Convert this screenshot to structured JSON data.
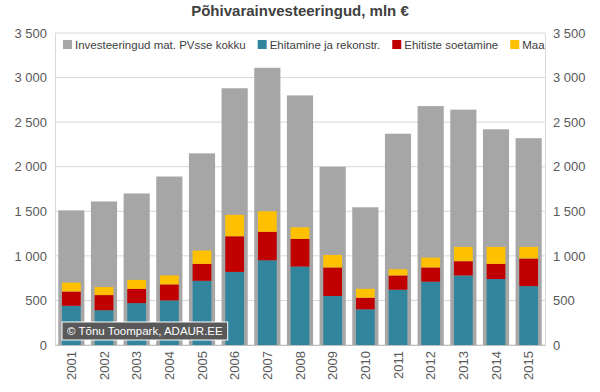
{
  "chart_data": {
    "type": "bar",
    "title": "Põhivarainvesteeringud, mln €",
    "annotation": "© Tõnu Toompark, ADAUR.EE",
    "categories": [
      "2001",
      "2002",
      "2003",
      "2004",
      "2005",
      "2006",
      "2007",
      "2008",
      "2009",
      "2010",
      "2011",
      "2012",
      "2013",
      "2014",
      "2015"
    ],
    "series": [
      {
        "name": "Investeeringud mat. PVsse kokku",
        "color": "#a6a6a6",
        "values": [
          1510,
          1610,
          1700,
          1890,
          2150,
          2880,
          3110,
          2800,
          2000,
          1545,
          2370,
          2680,
          2640,
          2420,
          2320
        ]
      },
      {
        "name": "Ehitamine ja rekonstr.",
        "color": "#31859c",
        "stacked": true,
        "values": [
          440,
          390,
          470,
          500,
          720,
          820,
          950,
          880,
          550,
          400,
          620,
          710,
          780,
          740,
          660
        ]
      },
      {
        "name": "Ehitiste soetamine",
        "color": "#c00000",
        "stacked": true,
        "values": [
          160,
          170,
          160,
          180,
          190,
          400,
          320,
          310,
          320,
          130,
          160,
          160,
          160,
          170,
          310
        ]
      },
      {
        "name": "Maa",
        "color": "#ffc000",
        "stacked": true,
        "values": [
          100,
          90,
          100,
          100,
          150,
          240,
          230,
          130,
          140,
          100,
          70,
          110,
          160,
          190,
          130
        ]
      }
    ],
    "ylim": [
      0,
      3500
    ],
    "yticks": [
      0,
      500,
      {
        "value": 1000,
        "label": "1 000"
      },
      {
        "value": 1500,
        "label": "1 500"
      },
      {
        "value": 2000,
        "label": "2 000"
      },
      {
        "value": 2500,
        "label": "2 500"
      },
      {
        "value": 3000,
        "label": "3 000"
      },
      {
        "value": 3500,
        "label": "3 500"
      }
    ],
    "y2lim": [
      0,
      3500
    ],
    "y2ticks": [
      0,
      500,
      {
        "value": 1000,
        "label": "1 000"
      },
      {
        "value": 1500,
        "label": "1 500"
      },
      {
        "value": 2000,
        "label": "2 000"
      },
      {
        "value": 2500,
        "label": "2 500"
      },
      {
        "value": 3000,
        "label": "3 000"
      },
      {
        "value": 3500,
        "label": "3 500"
      }
    ],
    "grid": true,
    "legend": "top"
  }
}
